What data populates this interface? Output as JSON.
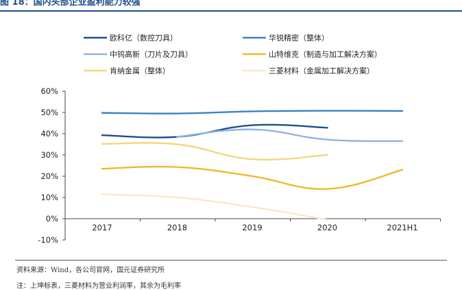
{
  "page": {
    "title": "图 18：国内头部企业盈利能力较强",
    "source": "资料来源：Wind，各公司官网，国元证券研究所",
    "footnote": "注：上坤标表，三菱材料为营业利润率，其余为毛利率"
  },
  "chart_data": {
    "type": "line",
    "title": "国内头部企业盈利能力较强",
    "xlabel": "",
    "ylabel": "",
    "categories": [
      "2017",
      "2018",
      "2019",
      "2020",
      "2021H1"
    ],
    "ylim": [
      -10,
      60
    ],
    "yticks": [
      -10,
      0,
      10,
      20,
      30,
      40,
      50,
      60
    ],
    "ytick_labels": [
      "-10%",
      "0%",
      "10%",
      "20%",
      "30%",
      "40%",
      "50%",
      "60%"
    ],
    "grid": false,
    "legend_position": "top",
    "series": [
      {
        "name": "欧科亿（数控刀具）",
        "color": "#1f4e8c",
        "values": [
          39.3,
          38.5,
          44.0,
          42.8,
          null
        ]
      },
      {
        "name": "华锐精密（整体）",
        "color": "#3b80c6",
        "values": [
          49.8,
          49.5,
          50.5,
          50.8,
          50.7
        ]
      },
      {
        "name": "中钨高新（刀片及刀具）",
        "color": "#8db4e2",
        "values": [
          null,
          38.5,
          42.0,
          37.2,
          36.5
        ]
      },
      {
        "name": "山特维克（制造与加工解决方案）",
        "color": "#f0b82a",
        "values": [
          23.5,
          24.3,
          20.0,
          14.0,
          23.0
        ]
      },
      {
        "name": "肯纳金属（整体）",
        "color": "#f8d57e",
        "values": [
          35.2,
          35.0,
          28.0,
          30.0,
          null
        ]
      },
      {
        "name": "三菱材料（金属加工解决方案）",
        "color": "#fbe9c6",
        "values": [
          11.5,
          10.0,
          5.5,
          -0.5,
          null
        ]
      }
    ]
  }
}
